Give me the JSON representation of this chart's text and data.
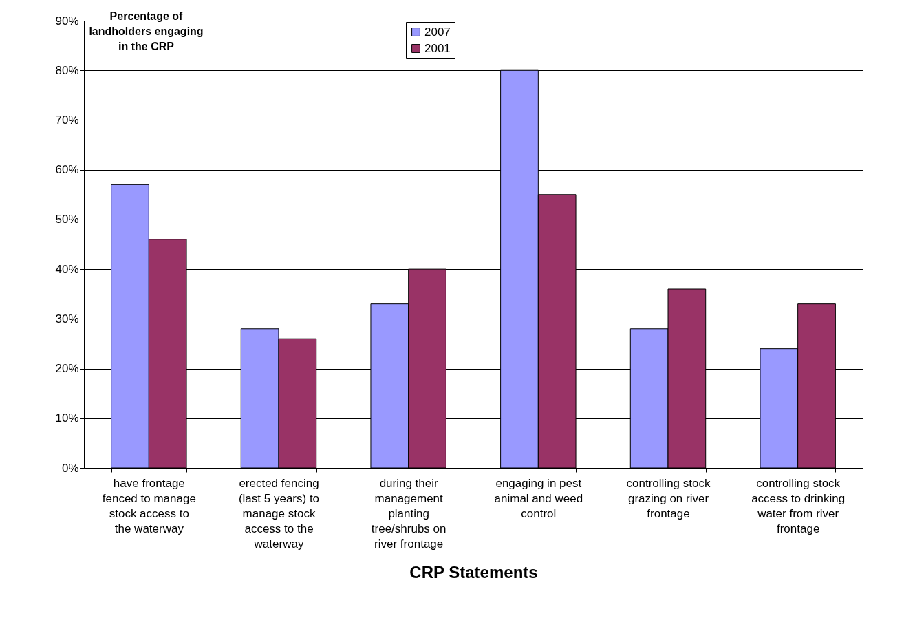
{
  "chart_data": {
    "type": "bar",
    "ylabel": "Percentage of landholders engaging in the CRP",
    "xlabel": "CRP Statements",
    "categories": [
      "have frontage fenced to manage stock access to the waterway",
      "erected fencing (last 5 years) to manage stock access to the waterway",
      "during their management planting tree/shrubs on river frontage",
      "engaging in pest animal and weed control",
      "controlling stock grazing on river frontage",
      "controlling stock access to drinking water from river frontage"
    ],
    "series": [
      {
        "name": "2007",
        "color": "#9999ff",
        "values": [
          57,
          28,
          33,
          80,
          28,
          24
        ]
      },
      {
        "name": "2001",
        "color": "#993366",
        "values": [
          46,
          26,
          40,
          55,
          36,
          33
        ]
      }
    ],
    "ylim": [
      0,
      90
    ],
    "yticks": [
      {
        "value": 0,
        "label": "0%"
      },
      {
        "value": 10,
        "label": "10%"
      },
      {
        "value": 20,
        "label": "20%"
      },
      {
        "value": 30,
        "label": "30%"
      },
      {
        "value": 40,
        "label": "40%"
      },
      {
        "value": 50,
        "label": "50%"
      },
      {
        "value": 60,
        "label": "60%"
      },
      {
        "value": 70,
        "label": "70%"
      },
      {
        "value": 80,
        "label": "80%"
      },
      {
        "value": 90,
        "label": "90%"
      }
    ],
    "grid": "y",
    "legend": "top"
  }
}
